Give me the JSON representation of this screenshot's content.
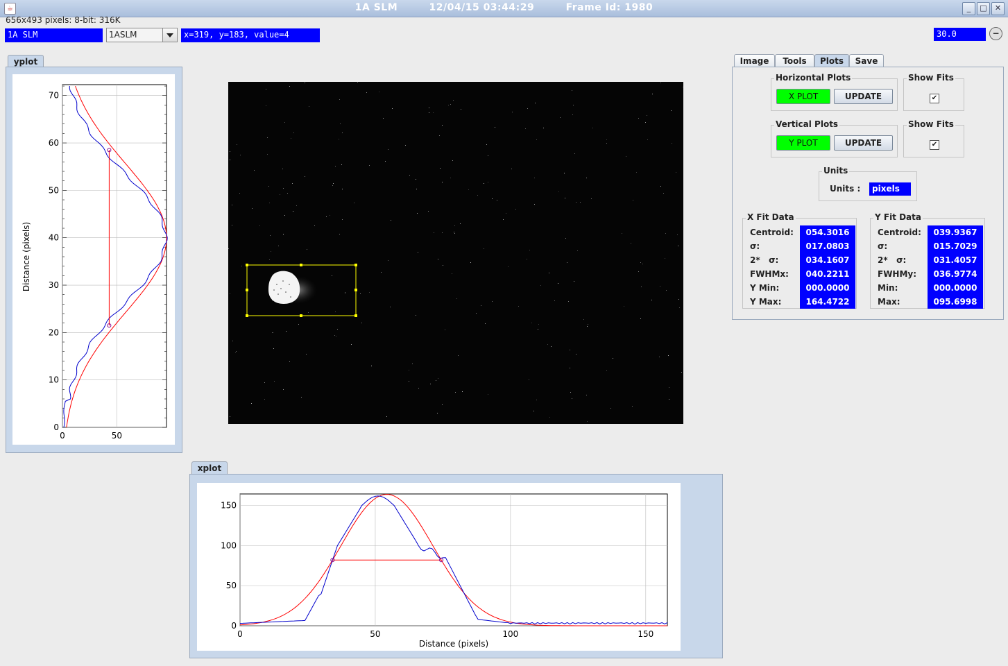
{
  "window": {
    "title_name": "1A SLM",
    "title_datetime": "12/04/15 03:44:29",
    "title_frame": "Frame Id: 1980"
  },
  "info_line": "656x493 pixels: 8-bit: 316K",
  "toolbar": {
    "camera_name": "1A SLM",
    "camera_select": "1ASLM",
    "coord_readout": "x=319, y=183, value=4",
    "zoom_value": "30.0"
  },
  "yplot": {
    "tab_label": "yplot",
    "ylabel": "Distance (pixels)",
    "yticks": [
      "0",
      "10",
      "20",
      "30",
      "40",
      "50",
      "60",
      "70"
    ],
    "xticks": [
      "0",
      "50"
    ]
  },
  "xplot": {
    "tab_label": "xplot",
    "xlabel": "Distance (pixels)",
    "xticks": [
      "0",
      "50",
      "100",
      "150"
    ],
    "yticks": [
      "0",
      "50",
      "100",
      "150"
    ]
  },
  "tabs": [
    "Image",
    "Tools",
    "Plots",
    "Save"
  ],
  "selected_tab": "Plots",
  "horizontal_plots": {
    "group_label": "Horizontal Plots",
    "plot_button": "X PLOT",
    "update_button": "UPDATE"
  },
  "vertical_plots": {
    "group_label": "Vertical Plots",
    "plot_button": "Y PLOT",
    "update_button": "UPDATE"
  },
  "show_fits_h": {
    "group_label": "Show Fits",
    "checked": true
  },
  "show_fits_v": {
    "group_label": "Show Fits",
    "checked": true
  },
  "units": {
    "group_label": "Units",
    "label": "Units :",
    "value": "pixels"
  },
  "x_fit": {
    "group_label": "X Fit Data",
    "rows": [
      {
        "label": "Centroid:",
        "value": "054.3016"
      },
      {
        "label": "σ:",
        "value": "017.0803"
      },
      {
        "label": "2*   σ:",
        "value": "034.1607"
      },
      {
        "label": "FWHMx:",
        "value": "040.2211"
      },
      {
        "label": "Y Min:",
        "value": "000.0000"
      },
      {
        "label": "Y Max:",
        "value": "164.4722"
      }
    ]
  },
  "y_fit": {
    "group_label": "Y Fit Data",
    "rows": [
      {
        "label": "Centroid:",
        "value": "039.9367"
      },
      {
        "label": "σ:",
        "value": "015.7029"
      },
      {
        "label": "2*   σ:",
        "value": "031.4057"
      },
      {
        "label": "FWHMy:",
        "value": "036.9774"
      },
      {
        "label": "Min:",
        "value": "000.0000"
      },
      {
        "label": "Max:",
        "value": "095.6998"
      }
    ]
  },
  "colors": {
    "highlight": "#0000ff",
    "button_active": "#00ff00",
    "fit_curve": "#ff0000",
    "data_curve": "#0000cc",
    "roi": "#ffff00"
  }
}
